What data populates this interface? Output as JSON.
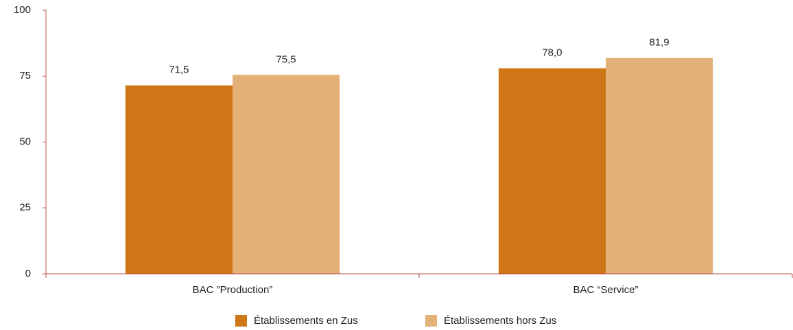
{
  "chart_data": {
    "type": "bar",
    "categories": [
      "BAC ”Production”",
      "BAC “Service”"
    ],
    "series": [
      {
        "name": "Établissements en Zus",
        "color": "#cf7616",
        "values": [
          71.5,
          78.0
        ],
        "value_labels": [
          "71,5",
          "78,0"
        ]
      },
      {
        "name": "Établissements hors Zus",
        "color": "#e4b178",
        "values": [
          75.5,
          81.9
        ],
        "value_labels": [
          "75,5",
          "81,9"
        ]
      }
    ],
    "ylim": [
      0,
      100
    ],
    "yticks": [
      0,
      25,
      50,
      75,
      100
    ],
    "axis_color": "#c0504d",
    "legend": "bottom"
  }
}
